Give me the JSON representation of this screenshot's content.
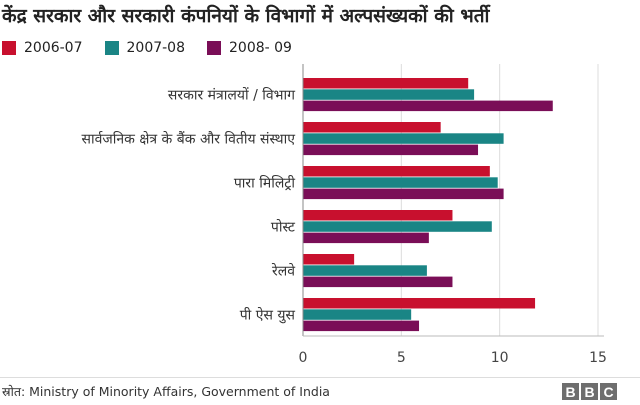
{
  "title": "केंद्र सरकार और सरकारी कंपनियों के विभागों में अल्पसंख्यकों की भर्ती",
  "colors": {
    "2006-07": "#c8102e",
    "2007-08": "#1a8585",
    "2008-09": "#7a0e57"
  },
  "chart_data": {
    "type": "bar",
    "orientation": "horizontal",
    "categories": [
      "सरकार मंत्रालयों / विभाग",
      "सार्वजनिक क्षेत्र के बैंक और वितीय संस्थाए",
      "पारा मिलिट्री",
      "पोस्ट",
      "रेलवे",
      "पी ऐस युस"
    ],
    "series": [
      {
        "name": "2006-07",
        "color": "#c8102e",
        "values": [
          8.4,
          7.0,
          9.5,
          7.6,
          2.6,
          11.8
        ]
      },
      {
        "name": "2007-08",
        "color": "#1a8585",
        "values": [
          8.7,
          10.2,
          9.9,
          9.6,
          6.3,
          5.5
        ]
      },
      {
        "name": "2008- 09",
        "color": "#7a0e57",
        "values": [
          12.7,
          8.9,
          10.2,
          6.4,
          7.6,
          5.9
        ]
      }
    ],
    "xlim": [
      0,
      15
    ],
    "xticks": [
      0,
      5,
      10,
      15
    ],
    "grid": true,
    "legend": "top-left"
  },
  "source": "स्रोत: Ministry of Minority Affairs, Government of India",
  "logo": [
    "B",
    "B",
    "C"
  ]
}
